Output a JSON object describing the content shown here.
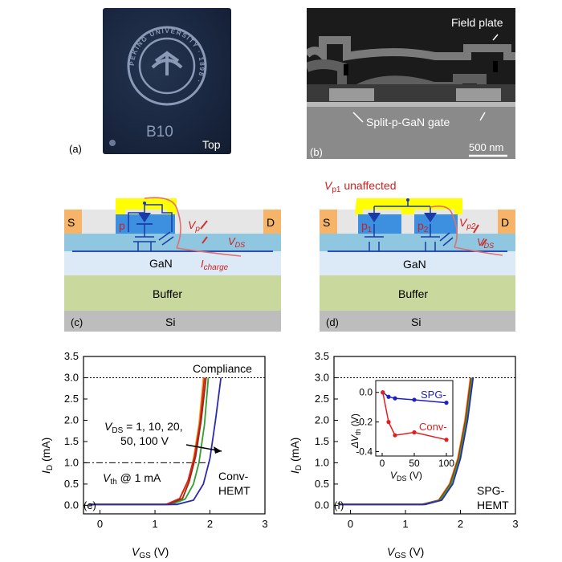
{
  "panel_a": {
    "label": "(a)",
    "seal_text": "PEKING UNIVERSITY · 1898 ·",
    "chip_mark": "B10",
    "side": "Top"
  },
  "panel_b": {
    "label": "(b)",
    "field_plate": "Field plate",
    "gate": "Split-p-GaN gate",
    "scale": "500 nm"
  },
  "panel_c": {
    "label": "(c)",
    "source": "S",
    "drain": "D",
    "p_region": "p",
    "vp_main": "V",
    "vp_sub": "p",
    "vds_main": "V",
    "vds_sub": "DS",
    "gan": "GaN",
    "icharge_main": "I",
    "icharge_sub": "charge",
    "buffer": "Buffer",
    "substrate": "Si"
  },
  "panel_d": {
    "label": "(d)",
    "source": "S",
    "drain": "D",
    "p1_main": "p",
    "p1_sub": "1",
    "p2_main": "p",
    "p2_sub": "2",
    "vp2_main": "V",
    "vp2_sub": "p2",
    "vds_main": "V",
    "vds_sub": "DS",
    "unaffected_main": "V",
    "unaffected_sub": "p1",
    "unaffected_rest": " unaffected",
    "gan": "GaN",
    "buffer": "Buffer",
    "substrate": "Si"
  },
  "panel_e": {
    "label": "(e)",
    "compliance": "Compliance",
    "vds_note_line1_main": "V",
    "vds_note_line1_sub": "DS",
    "vds_note_line1_rest": " = 1, 10, 20,",
    "vds_note_line2": "50, 100 V",
    "vth_main": "V",
    "vth_sub": "th",
    "vth_rest": " @ 1 mA",
    "device_line1": "Conv-",
    "device_line2": "HEMT",
    "ylabel_main": "I",
    "ylabel_sub": "D",
    "ylabel_unit": " (mA)",
    "xlabel_main": "V",
    "xlabel_sub": "GS",
    "xlabel_unit": " (V)",
    "xticks": [
      "0",
      "1",
      "2",
      "3"
    ],
    "yticks": [
      "0.0",
      "0.5",
      "1.0",
      "1.5",
      "2.0",
      "2.5",
      "3.0",
      "3.5"
    ]
  },
  "panel_f": {
    "label": "(f)",
    "device_line1": "SPG-",
    "device_line2": "HEMT",
    "ylabel_main": "I",
    "ylabel_sub": "D",
    "ylabel_unit": " (mA)",
    "xlabel_main": "V",
    "xlabel_sub": "GS",
    "xlabel_unit": " (V)",
    "xticks": [
      "0",
      "1",
      "2",
      "3"
    ],
    "yticks": [
      "0.0",
      "0.5",
      "1.0",
      "1.5",
      "2.0",
      "2.5",
      "3.0",
      "3.5"
    ],
    "inset": {
      "ylabel_main": "ΔV",
      "ylabel_sub": "th",
      "ylabel_unit": " (V)",
      "xlabel_main": "V",
      "xlabel_sub": "DS",
      "xlabel_unit": " (V)",
      "xticks": [
        "0",
        "50",
        "100"
      ],
      "yticks": [
        "0.0",
        "-0.2",
        "-0.4"
      ],
      "spg_label": "SPG-",
      "conv_label": "Conv-"
    }
  },
  "chart_data": [
    {
      "type": "line",
      "panel": "e",
      "xlim": [
        -0.3,
        3.0
      ],
      "ylim": [
        -0.2,
        3.5
      ],
      "compliance_y": 3.0,
      "vth_line_y": 1.0,
      "series": [
        {
          "color": "#e8a020",
          "points": [
            [
              -0.2,
              0.02
            ],
            [
              1.2,
              0.02
            ],
            [
              1.45,
              0.15
            ],
            [
              1.6,
              0.55
            ],
            [
              1.7,
              1.1
            ],
            [
              1.8,
              1.9
            ],
            [
              1.88,
              3.0
            ]
          ]
        },
        {
          "color": "#e02020",
          "points": [
            [
              -0.2,
              0.02
            ],
            [
              1.2,
              0.02
            ],
            [
              1.45,
              0.16
            ],
            [
              1.6,
              0.58
            ],
            [
              1.72,
              1.15
            ],
            [
              1.82,
              1.95
            ],
            [
              1.9,
              3.0
            ]
          ]
        },
        {
          "color": "#9a2a10",
          "points": [
            [
              -0.2,
              0.02
            ],
            [
              1.25,
              0.02
            ],
            [
              1.5,
              0.16
            ],
            [
              1.62,
              0.55
            ],
            [
              1.74,
              1.15
            ],
            [
              1.84,
              2.0
            ],
            [
              1.93,
              3.0
            ]
          ]
        },
        {
          "color": "#30a030",
          "points": [
            [
              -0.2,
              0.02
            ],
            [
              1.3,
              0.02
            ],
            [
              1.55,
              0.15
            ],
            [
              1.7,
              0.5
            ],
            [
              1.8,
              1.0
            ],
            [
              1.9,
              1.9
            ],
            [
              1.97,
              3.0
            ]
          ]
        },
        {
          "color": "#2a2ab0",
          "points": [
            [
              -0.2,
              0.02
            ],
            [
              1.4,
              0.02
            ],
            [
              1.7,
              0.12
            ],
            [
              1.88,
              0.5
            ],
            [
              2.0,
              1.1
            ],
            [
              2.1,
              2.0
            ],
            [
              2.2,
              3.0
            ]
          ]
        }
      ]
    },
    {
      "type": "line",
      "panel": "f",
      "xlim": [
        -0.3,
        3.0
      ],
      "ylim": [
        -0.2,
        3.5
      ],
      "compliance_y": 3.0,
      "series": [
        {
          "color": "#e8a020",
          "points": [
            [
              -0.2,
              0.02
            ],
            [
              1.3,
              0.02
            ],
            [
              1.6,
              0.12
            ],
            [
              1.8,
              0.5
            ],
            [
              1.95,
              1.1
            ],
            [
              2.08,
              2.0
            ],
            [
              2.18,
              3.0
            ]
          ]
        },
        {
          "color": "#e02020",
          "points": [
            [
              -0.2,
              0.02
            ],
            [
              1.3,
              0.02
            ],
            [
              1.61,
              0.12
            ],
            [
              1.81,
              0.5
            ],
            [
              1.96,
              1.1
            ],
            [
              2.09,
              2.0
            ],
            [
              2.19,
              3.0
            ]
          ]
        },
        {
          "color": "#9a2a10",
          "points": [
            [
              -0.2,
              0.02
            ],
            [
              1.32,
              0.02
            ],
            [
              1.62,
              0.12
            ],
            [
              1.82,
              0.5
            ],
            [
              1.97,
              1.1
            ],
            [
              2.1,
              2.0
            ],
            [
              2.2,
              3.0
            ]
          ]
        },
        {
          "color": "#30a030",
          "points": [
            [
              -0.2,
              0.02
            ],
            [
              1.33,
              0.02
            ],
            [
              1.63,
              0.12
            ],
            [
              1.83,
              0.5
            ],
            [
              1.98,
              1.1
            ],
            [
              2.11,
              2.0
            ],
            [
              2.21,
              3.0
            ]
          ]
        },
        {
          "color": "#2a2ab0",
          "points": [
            [
              -0.2,
              0.02
            ],
            [
              1.36,
              0.02
            ],
            [
              1.66,
              0.12
            ],
            [
              1.86,
              0.5
            ],
            [
              2.0,
              1.1
            ],
            [
              2.13,
              2.0
            ],
            [
              2.23,
              3.0
            ]
          ]
        }
      ]
    },
    {
      "type": "line",
      "panel": "f-inset",
      "xlim": [
        -10,
        110
      ],
      "ylim": [
        -0.43,
        0.08
      ],
      "series": [
        {
          "name": "SPG-",
          "color": "#2020c0",
          "x": [
            1,
            10,
            20,
            50,
            100
          ],
          "y": [
            0.0,
            -0.03,
            -0.04,
            -0.05,
            -0.07
          ]
        },
        {
          "name": "Conv-",
          "color": "#e02020",
          "x": [
            1,
            10,
            20,
            50,
            100
          ],
          "y": [
            0.0,
            -0.2,
            -0.29,
            -0.27,
            -0.32
          ]
        }
      ]
    }
  ]
}
